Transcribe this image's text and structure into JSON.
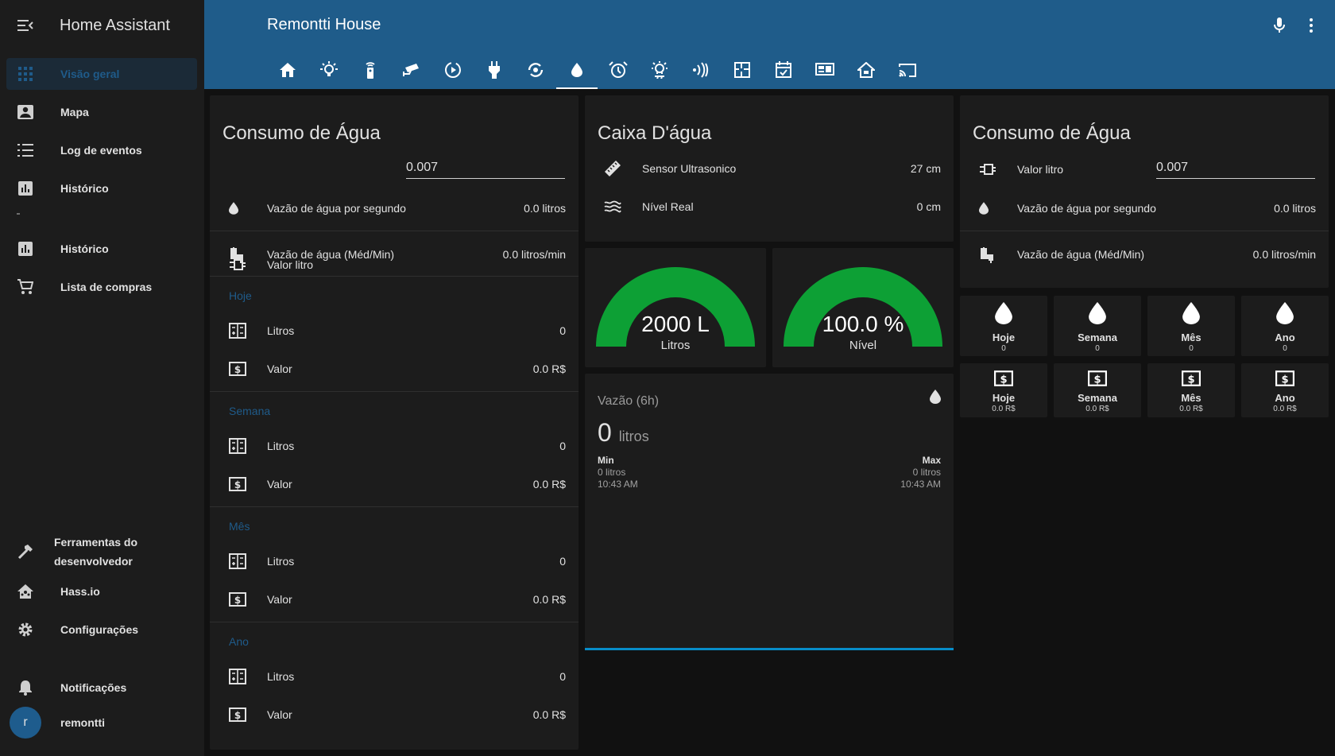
{
  "app": {
    "title": "Home Assistant"
  },
  "sidebar": {
    "items": [
      {
        "label": "Visão geral",
        "icon": "view-dashboard-icon",
        "active": true
      },
      {
        "label": "Mapa",
        "icon": "account-box-icon"
      },
      {
        "label": "Log de eventos",
        "icon": "format-list-icon"
      },
      {
        "label": "Histórico",
        "icon": "chart-box-icon"
      },
      {
        "label": "Histórico",
        "icon": "chart-box-icon"
      },
      {
        "label": "Lista de compras",
        "icon": "cart-icon"
      }
    ],
    "bottom": [
      {
        "label": "Ferramentas do desenvolvedor",
        "icon": "hammer-icon"
      },
      {
        "label": "Hass.io",
        "icon": "home-assistant-icon"
      },
      {
        "label": "Configurações",
        "icon": "gear-icon"
      }
    ],
    "notifications": "Notificações",
    "user": {
      "initial": "r",
      "name": "remontti"
    }
  },
  "header": {
    "title": "Remontti House",
    "tabs": [
      "home",
      "light",
      "remote",
      "camera",
      "media",
      "plug",
      "sync",
      "water",
      "alarm",
      "weather",
      "wireless",
      "floorplan",
      "calendar",
      "monitor",
      "house",
      "cast"
    ],
    "active_tab": 7
  },
  "card_agua_1": {
    "title": "Consumo de Água",
    "valor_litro_label": "Valor litro",
    "valor_litro_value": "0.007",
    "vazao_seg_label": "Vazão de água por segundo",
    "vazao_seg_value": "0.0 litros",
    "vazao_min_label": "Vazão de água (Méd/Min)",
    "vazao_min_value": "0.0 litros/min",
    "sections": [
      {
        "name": "Hoje",
        "litros_label": "Litros",
        "litros": "0",
        "valor_label": "Valor",
        "valor": "0.0 R$"
      },
      {
        "name": "Semana",
        "litros_label": "Litros",
        "litros": "0",
        "valor_label": "Valor",
        "valor": "0.0 R$"
      },
      {
        "name": "Mês",
        "litros_label": "Litros",
        "litros": "0",
        "valor_label": "Valor",
        "valor": "0.0 R$"
      },
      {
        "name": "Ano",
        "litros_label": "Litros",
        "litros": "0",
        "valor_label": "Valor",
        "valor": "0.0 R$"
      }
    ]
  },
  "card_caixa": {
    "title": "Caixa D'água",
    "sensor_label": "Sensor Ultrasonico",
    "sensor_value": "27 cm",
    "nivel_label": "Nível Real",
    "nivel_value": "0 cm"
  },
  "gauges": [
    {
      "value": "2000 L",
      "label": "Litros",
      "fraction": 1.0,
      "color": "#0da035"
    },
    {
      "value": "100.0 %",
      "label": "Nível",
      "fraction": 1.0,
      "color": "#0da035"
    }
  ],
  "sensor_card": {
    "title": "Vazão (6h)",
    "value": "0",
    "unit": "litros",
    "min_label": "Min",
    "min_value": "0 litros",
    "min_time": "10:43 AM",
    "max_label": "Max",
    "max_value": "0 litros",
    "max_time": "10:43 AM",
    "line_color": "#03a9f4"
  },
  "card_agua_2": {
    "title": "Consumo de Água",
    "valor_litro_label": "Valor litro",
    "valor_litro_value": "0.007",
    "vazao_seg_label": "Vazão de água por segundo",
    "vazao_seg_value": "0.0 litros",
    "vazao_min_label": "Vazão de água (Méd/Min)",
    "vazao_min_value": "0.0 litros/min"
  },
  "tiles_litros": [
    {
      "name": "Hoje",
      "value": "0"
    },
    {
      "name": "Semana",
      "value": "0"
    },
    {
      "name": "Mês",
      "value": "0"
    },
    {
      "name": "Ano",
      "value": "0"
    }
  ],
  "tiles_valor": [
    {
      "name": "Hoje",
      "value": "0.0 R$"
    },
    {
      "name": "Semana",
      "value": "0.0 R$"
    },
    {
      "name": "Mês",
      "value": "0.0 R$"
    },
    {
      "name": "Ano",
      "value": "0.0 R$"
    }
  ]
}
